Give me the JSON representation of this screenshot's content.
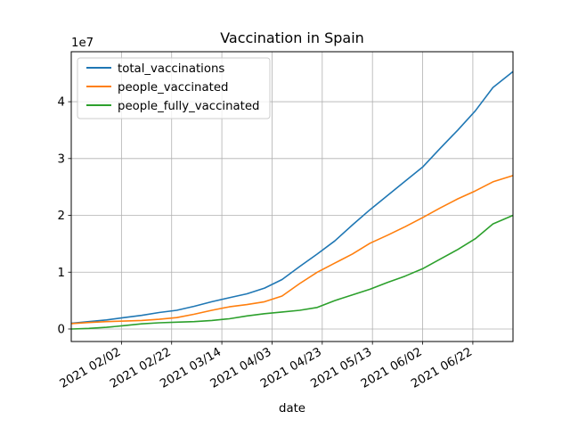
{
  "chart_data": {
    "type": "line",
    "title": "Vaccination in Spain",
    "xlabel": "date",
    "ylabel": "",
    "y_multiplier": "1e7",
    "grid": true,
    "legend_position": "top-left",
    "xlim": [
      "2021-01-13",
      "2021-07-08"
    ],
    "ylim": [
      -2200000,
      48800000
    ],
    "x_ticks": [
      {
        "date": "2021-02-02",
        "label": "2021 02/02"
      },
      {
        "date": "2021-02-22",
        "label": "2021 02/22"
      },
      {
        "date": "2021-03-14",
        "label": "2021 03/14"
      },
      {
        "date": "2021-04-03",
        "label": "2021 04/03"
      },
      {
        "date": "2021-04-23",
        "label": "2021 04/23"
      },
      {
        "date": "2021-05-13",
        "label": "2021 05/13"
      },
      {
        "date": "2021-06-02",
        "label": "2021 06/02"
      },
      {
        "date": "2021-06-22",
        "label": "2021 06/22"
      }
    ],
    "y_ticks": [
      {
        "value": 0,
        "label": "0"
      },
      {
        "value": 10000000,
        "label": "1"
      },
      {
        "value": 20000000,
        "label": "2"
      },
      {
        "value": 30000000,
        "label": "3"
      },
      {
        "value": 40000000,
        "label": "4"
      }
    ],
    "x": [
      "2021-01-13",
      "2021-01-20",
      "2021-01-27",
      "2021-02-03",
      "2021-02-10",
      "2021-02-17",
      "2021-02-24",
      "2021-03-03",
      "2021-03-10",
      "2021-03-17",
      "2021-03-24",
      "2021-03-31",
      "2021-04-07",
      "2021-04-14",
      "2021-04-21",
      "2021-04-28",
      "2021-05-05",
      "2021-05-12",
      "2021-05-19",
      "2021-05-26",
      "2021-06-02",
      "2021-06-09",
      "2021-06-16",
      "2021-06-23",
      "2021-06-30",
      "2021-07-08"
    ],
    "series": [
      {
        "name": "total_vaccinations",
        "color": "#1f77b4",
        "values": [
          1000000,
          1300000,
          1600000,
          2000000,
          2400000,
          2900000,
          3300000,
          4000000,
          4800000,
          5500000,
          6200000,
          7200000,
          8700000,
          11000000,
          13200000,
          15500000,
          18300000,
          21000000,
          23500000,
          26000000,
          28500000,
          31800000,
          35000000,
          38400000,
          42500000,
          45300000
        ]
      },
      {
        "name": "people_vaccinated",
        "color": "#ff7f0e",
        "values": [
          950000,
          1150000,
          1300000,
          1400000,
          1500000,
          1700000,
          2000000,
          2600000,
          3300000,
          3900000,
          4300000,
          4800000,
          5800000,
          8000000,
          10000000,
          11600000,
          13200000,
          15100000,
          16500000,
          18000000,
          19600000,
          21300000,
          22900000,
          24300000,
          25900000,
          27000000
        ]
      },
      {
        "name": "people_fully_vaccinated",
        "color": "#2ca02c",
        "values": [
          0,
          100000,
          300000,
          600000,
          900000,
          1100000,
          1200000,
          1300000,
          1500000,
          1800000,
          2300000,
          2700000,
          3000000,
          3300000,
          3800000,
          5000000,
          6000000,
          7000000,
          8200000,
          9300000,
          10600000,
          12300000,
          14000000,
          15900000,
          18500000,
          20000000
        ]
      }
    ]
  }
}
